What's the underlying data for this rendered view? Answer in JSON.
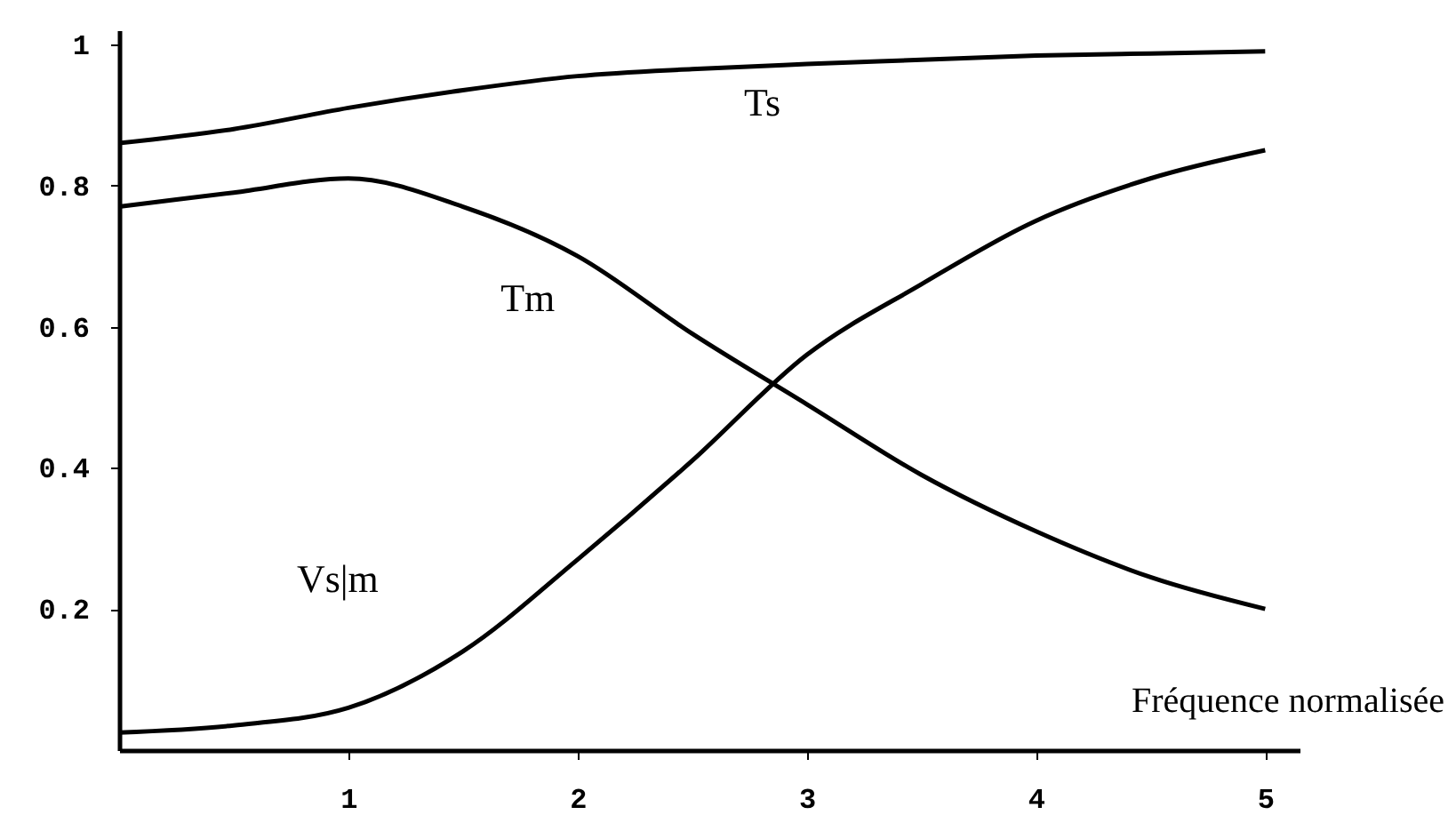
{
  "chart_data": {
    "type": "line",
    "xlabel": "Fréquence normalisée",
    "x": [
      0,
      0.5,
      1,
      1.5,
      2,
      2.5,
      3,
      3.5,
      4,
      4.5,
      5
    ],
    "series": [
      {
        "name": "Ts",
        "color": "#000000",
        "values": [
          0.86,
          0.88,
          0.91,
          0.935,
          0.955,
          0.965,
          0.972,
          0.978,
          0.984,
          0.987,
          0.99
        ]
      },
      {
        "name": "Tm",
        "color": "#000000",
        "values": [
          0.77,
          0.79,
          0.81,
          0.77,
          0.7,
          0.59,
          0.49,
          0.39,
          0.31,
          0.245,
          0.2
        ]
      },
      {
        "name": "Vs|m",
        "color": "#000000",
        "values": [
          0.025,
          0.035,
          0.06,
          0.14,
          0.27,
          0.41,
          0.56,
          0.66,
          0.75,
          0.81,
          0.85
        ]
      }
    ],
    "xlim": [
      0,
      5.15
    ],
    "ylim": [
      0,
      1.02
    ],
    "xticks": [
      1,
      2,
      3,
      4,
      5
    ],
    "yticks": [
      0.2,
      0.4,
      0.6,
      0.8,
      1
    ],
    "grid": false,
    "line_style": "solid"
  }
}
